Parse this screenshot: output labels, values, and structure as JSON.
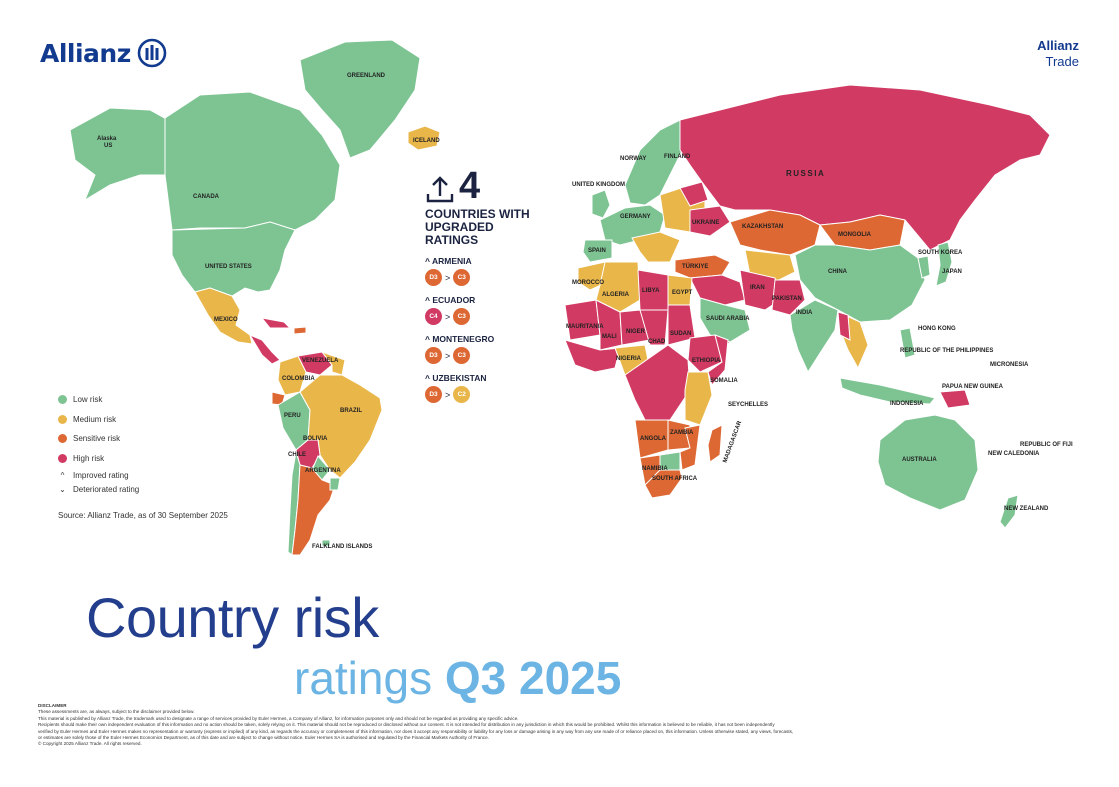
{
  "brand": {
    "logo_text": "Allianz",
    "right_line1": "Allianz",
    "right_line2": "Trade"
  },
  "colors": {
    "low": "#7ec493",
    "medium": "#e9b64a",
    "sensitive": "#dd6834",
    "high": "#d13a63",
    "brand_blue": "#123a8f",
    "title_dark": "#233e8c",
    "title_light": "#6bb4e3"
  },
  "upgrades": {
    "icon": "upload-arrow-icon",
    "count": "4",
    "title_line1": "COUNTRIES WITH",
    "title_line2": "UPGRADED",
    "title_line3": "RATINGS",
    "items": [
      {
        "name": "ARMENIA",
        "from": "D3",
        "to": "C3",
        "from_color": "#dd6834",
        "to_color": "#dd6834"
      },
      {
        "name": "ECUADOR",
        "from": "C4",
        "to": "C3",
        "from_color": "#d13a63",
        "to_color": "#dd6834"
      },
      {
        "name": "MONTENEGRO",
        "from": "D3",
        "to": "C3",
        "from_color": "#dd6834",
        "to_color": "#dd6834"
      },
      {
        "name": "UZBEKISTAN",
        "from": "D3",
        "to": "C2",
        "from_color": "#dd6834",
        "to_color": "#e9b64a"
      }
    ],
    "arrow_symbol": "^",
    "gt_symbol": ">"
  },
  "legend": [
    {
      "label": "Low risk",
      "color": "#7ec493"
    },
    {
      "label": "Medium risk",
      "color": "#e9b64a"
    },
    {
      "label": "Sensitive risk",
      "color": "#dd6834"
    },
    {
      "label": "High risk",
      "color": "#d13a63"
    }
  ],
  "legend_symbols": [
    {
      "symbol": "^",
      "label": "Improved rating"
    },
    {
      "symbol": "⌄",
      "label": "Deteriorated rating"
    }
  ],
  "source": "Source: Allianz Trade, as of 30 September 2025",
  "title": {
    "line1": "Country risk",
    "line2a": "ratings ",
    "line2b": "Q3 2025"
  },
  "map_labels": {
    "russia": "RUSSIA",
    "canada": "CANADA",
    "greenland": "GREENLAND",
    "alaska": "Alaska",
    "us_short": "US",
    "usa": "UNITED STATES",
    "mexico": "MEXICO",
    "brazil": "BRAZIL",
    "argentina": "ARGENTINA",
    "bolivia": "BOLIVIA",
    "colombia": "COLOMBIA",
    "venezuela": "VENEZUELA",
    "peru": "PERU",
    "chile": "CHILE",
    "china": "CHINA",
    "mongolia": "MONGOLIA",
    "kazakhstan": "KAZAKHSTAN",
    "iran": "IRAN",
    "india": "INDIA",
    "japan": "JAPAN",
    "australia": "AUSTRALIA",
    "algeria": "ALGERIA",
    "libya": "LIBYA",
    "egypt": "EGYPT",
    "sudan": "SUDAN",
    "mali": "MALI",
    "niger": "NIGER",
    "chad": "CHAD",
    "nigeria": "NIGERIA",
    "ethiopia": "ETHIOPIA",
    "angola": "ANGOLA",
    "south_africa": "SOUTH AFRICA",
    "madagascar": "MADAGASCAR",
    "saudi": "SAUDI ARABIA",
    "ukraine": "UKRAINE",
    "turkiye": "TÜRKIYE",
    "iceland": "ICELAND",
    "norway": "NORWAY",
    "finland": "FINLAND",
    "indonesia": "INDONESIA",
    "papua": "PAPUA NEW GUINEA",
    "new_zealand": "NEW ZEALAND",
    "philippines": "REPUBLIC OF THE PHILIPPINES",
    "falklands": "FALKLAND ISLANDS",
    "mauritania": "MAURITANIA",
    "seychelles": "SEYCHELLES",
    "uk": "UNITED KINGDOM",
    "germany": "GERMANY",
    "spain": "SPAIN",
    "morocco": "MOROCCO",
    "zambia": "ZAMBIA",
    "namibia": "NAMIBIA",
    "somalia": "SOMALIA",
    "pakistan": "PAKISTAN",
    "south_korea": "SOUTH KOREA",
    "micronesia": "MICRONESIA",
    "fiji": "REPUBLIC OF FIJI",
    "new_caledonia": "NEW CALEDONIA",
    "hong_kong": "HONG KONG"
  },
  "disclaimer": {
    "heading": "DISCLAIMER",
    "lines": [
      "These assessments are, as always, subject to the disclaimer provided below.",
      "This material is published by Allianz Trade, the trademark used to designate a range of services provided by Euler Hermes, a Company of Allianz, for information purposes only and should not be regarded as providing any specific advice.",
      "Recipients should make their own independent evaluation of this information and no action should be taken, solely relying on it. This material should not be reproduced or disclosed without our consent. It is not intended for distribution in any jurisdiction in which this would be prohibited. Whilst this information is believed to be reliable, it has not been independently",
      "verified by Euler Hermes and Euler Hermes makes no representation or warranty (express or implied) of any kind, as regards the accuracy or completeness of this information, nor does it accept any responsibility or liability for any loss or damage arising in any way from any use made of or reliance placed on, this information. Unless otherwise stated, any views, forecasts,",
      "or estimates are solely those of the Euler Hermes Economics Department, as of this date and are subject to change without notice. Euler Hermes SA is authorised and regulated by the Financial Markets Authority of France.",
      "© Copyright 2025 Allianz Trade. All rights reserved."
    ]
  }
}
